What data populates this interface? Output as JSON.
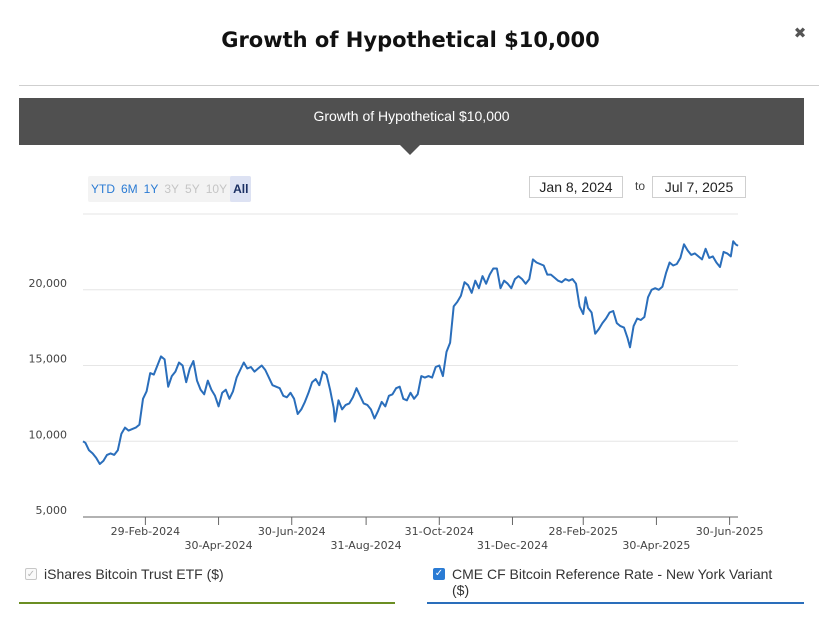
{
  "modal": {
    "title": "Growth of Hypothetical $10,000",
    "close_glyph": "✖"
  },
  "banner": {
    "title": "Growth of Hypothetical $10,000"
  },
  "range_selector": {
    "buttons": [
      {
        "label": "YTD",
        "state": "enabled"
      },
      {
        "label": "6M",
        "state": "enabled"
      },
      {
        "label": "1Y",
        "state": "enabled"
      },
      {
        "label": "3Y",
        "state": "disabled"
      },
      {
        "label": "5Y",
        "state": "disabled"
      },
      {
        "label": "10Y",
        "state": "disabled"
      },
      {
        "label": "All",
        "state": "selected"
      }
    ]
  },
  "date_range": {
    "from": "Jan 8, 2024",
    "separator": "to",
    "to": "Jul 7, 2025"
  },
  "legend": [
    {
      "label": "iShares Bitcoin Trust ETF ($)",
      "checked": false,
      "color": "#6b8e23"
    },
    {
      "label": "CME CF Bitcoin Reference Rate - New York Variant ($)",
      "checked": true,
      "color": "#2a6ebb"
    }
  ],
  "chart_data": {
    "type": "line",
    "y_ticks": [
      5000,
      10000,
      15000,
      20000
    ],
    "y_tick_labels": [
      "5,000",
      "10,000",
      "15,000",
      "20,000"
    ],
    "ylim": [
      5000,
      25000
    ],
    "x_ticks": [
      {
        "date": "2024-02-29",
        "label": "29-Feb-2024",
        "row": 1
      },
      {
        "date": "2024-04-30",
        "label": "30-Apr-2024",
        "row": 2
      },
      {
        "date": "2024-06-30",
        "label": "30-Jun-2024",
        "row": 1
      },
      {
        "date": "2024-08-31",
        "label": "31-Aug-2024",
        "row": 2
      },
      {
        "date": "2024-10-31",
        "label": "31-Oct-2024",
        "row": 1
      },
      {
        "date": "2024-12-31",
        "label": "31-Dec-2024",
        "row": 2
      },
      {
        "date": "2025-02-28",
        "label": "28-Feb-2025",
        "row": 1
      },
      {
        "date": "2025-04-30",
        "label": "30-Apr-2025",
        "row": 2
      },
      {
        "date": "2025-06-30",
        "label": "30-Jun-2025",
        "row": 1
      }
    ],
    "xlim": [
      "2024-01-08",
      "2025-07-07"
    ],
    "grid": true,
    "series": [
      {
        "name": "CME CF Bitcoin Reference Rate - New York Variant ($)",
        "color": "#2a6ebb",
        "points": [
          [
            "2024-01-08",
            10000
          ],
          [
            "2024-01-10",
            9900
          ],
          [
            "2024-01-13",
            9400
          ],
          [
            "2024-01-16",
            9200
          ],
          [
            "2024-01-19",
            8900
          ],
          [
            "2024-01-22",
            8500
          ],
          [
            "2024-01-25",
            8700
          ],
          [
            "2024-01-28",
            9100
          ],
          [
            "2024-01-31",
            9200
          ],
          [
            "2024-02-03",
            9100
          ],
          [
            "2024-02-06",
            9400
          ],
          [
            "2024-02-09",
            10500
          ],
          [
            "2024-02-12",
            10900
          ],
          [
            "2024-02-15",
            10700
          ],
          [
            "2024-02-18",
            10800
          ],
          [
            "2024-02-21",
            10900
          ],
          [
            "2024-02-24",
            11100
          ],
          [
            "2024-02-27",
            12800
          ],
          [
            "2024-03-01",
            13300
          ],
          [
            "2024-03-04",
            14500
          ],
          [
            "2024-03-07",
            14400
          ],
          [
            "2024-03-10",
            15000
          ],
          [
            "2024-03-13",
            15600
          ],
          [
            "2024-03-16",
            15400
          ],
          [
            "2024-03-19",
            13600
          ],
          [
            "2024-03-22",
            14300
          ],
          [
            "2024-03-25",
            14600
          ],
          [
            "2024-03-28",
            15200
          ],
          [
            "2024-03-31",
            15000
          ],
          [
            "2024-04-03",
            13900
          ],
          [
            "2024-04-06",
            14800
          ],
          [
            "2024-04-09",
            15300
          ],
          [
            "2024-04-12",
            14000
          ],
          [
            "2024-04-15",
            13400
          ],
          [
            "2024-04-18",
            13100
          ],
          [
            "2024-04-21",
            14000
          ],
          [
            "2024-04-24",
            13400
          ],
          [
            "2024-04-27",
            13000
          ],
          [
            "2024-04-30",
            12300
          ],
          [
            "2024-05-03",
            13200
          ],
          [
            "2024-05-06",
            13400
          ],
          [
            "2024-05-09",
            12800
          ],
          [
            "2024-05-12",
            13300
          ],
          [
            "2024-05-15",
            14200
          ],
          [
            "2024-05-18",
            14700
          ],
          [
            "2024-05-21",
            15200
          ],
          [
            "2024-05-24",
            14800
          ],
          [
            "2024-05-27",
            14900
          ],
          [
            "2024-05-30",
            14600
          ],
          [
            "2024-06-02",
            14800
          ],
          [
            "2024-06-05",
            15000
          ],
          [
            "2024-06-08",
            14700
          ],
          [
            "2024-06-11",
            14200
          ],
          [
            "2024-06-14",
            13700
          ],
          [
            "2024-06-17",
            13600
          ],
          [
            "2024-06-20",
            13500
          ],
          [
            "2024-06-23",
            13000
          ],
          [
            "2024-06-26",
            12900
          ],
          [
            "2024-06-29",
            13200
          ],
          [
            "2024-07-02",
            12800
          ],
          [
            "2024-07-05",
            11800
          ],
          [
            "2024-07-08",
            12100
          ],
          [
            "2024-07-11",
            12600
          ],
          [
            "2024-07-14",
            13200
          ],
          [
            "2024-07-17",
            13900
          ],
          [
            "2024-07-20",
            14100
          ],
          [
            "2024-07-23",
            13700
          ],
          [
            "2024-07-26",
            14600
          ],
          [
            "2024-07-29",
            14400
          ],
          [
            "2024-08-01",
            13400
          ],
          [
            "2024-08-04",
            12200
          ],
          [
            "2024-08-05",
            11300
          ],
          [
            "2024-08-08",
            12700
          ],
          [
            "2024-08-11",
            12100
          ],
          [
            "2024-08-14",
            12400
          ],
          [
            "2024-08-17",
            12500
          ],
          [
            "2024-08-20",
            12900
          ],
          [
            "2024-08-23",
            13500
          ],
          [
            "2024-08-26",
            13000
          ],
          [
            "2024-08-29",
            12500
          ],
          [
            "2024-09-01",
            12400
          ],
          [
            "2024-09-04",
            12100
          ],
          [
            "2024-09-07",
            11500
          ],
          [
            "2024-09-10",
            12000
          ],
          [
            "2024-09-13",
            12600
          ],
          [
            "2024-09-16",
            12300
          ],
          [
            "2024-09-19",
            13000
          ],
          [
            "2024-09-22",
            13100
          ],
          [
            "2024-09-25",
            13500
          ],
          [
            "2024-09-28",
            13600
          ],
          [
            "2024-10-01",
            12800
          ],
          [
            "2024-10-04",
            12700
          ],
          [
            "2024-10-07",
            13200
          ],
          [
            "2024-10-10",
            12800
          ],
          [
            "2024-10-13",
            13100
          ],
          [
            "2024-10-16",
            14300
          ],
          [
            "2024-10-19",
            14200
          ],
          [
            "2024-10-22",
            14300
          ],
          [
            "2024-10-25",
            14200
          ],
          [
            "2024-10-28",
            14900
          ],
          [
            "2024-10-31",
            15000
          ],
          [
            "2024-11-03",
            14300
          ],
          [
            "2024-11-06",
            15900
          ],
          [
            "2024-11-09",
            16500
          ],
          [
            "2024-11-12",
            18900
          ],
          [
            "2024-11-15",
            19200
          ],
          [
            "2024-11-18",
            19600
          ],
          [
            "2024-11-21",
            20500
          ],
          [
            "2024-11-24",
            20300
          ],
          [
            "2024-11-27",
            19800
          ],
          [
            "2024-11-30",
            20600
          ],
          [
            "2024-12-03",
            20100
          ],
          [
            "2024-12-06",
            20900
          ],
          [
            "2024-12-09",
            20400
          ],
          [
            "2024-12-12",
            21000
          ],
          [
            "2024-12-15",
            21400
          ],
          [
            "2024-12-18",
            21400
          ],
          [
            "2024-12-21",
            20100
          ],
          [
            "2024-12-24",
            20600
          ],
          [
            "2024-12-27",
            20400
          ],
          [
            "2024-12-30",
            20100
          ],
          [
            "2025-01-02",
            20700
          ],
          [
            "2025-01-05",
            20900
          ],
          [
            "2025-01-08",
            20700
          ],
          [
            "2025-01-11",
            20400
          ],
          [
            "2025-01-14",
            20700
          ],
          [
            "2025-01-17",
            22000
          ],
          [
            "2025-01-20",
            21800
          ],
          [
            "2025-01-23",
            21700
          ],
          [
            "2025-01-26",
            21600
          ],
          [
            "2025-01-29",
            21000
          ],
          [
            "2025-02-01",
            21000
          ],
          [
            "2025-02-04",
            20800
          ],
          [
            "2025-02-07",
            20600
          ],
          [
            "2025-02-10",
            20500
          ],
          [
            "2025-02-13",
            20700
          ],
          [
            "2025-02-16",
            20600
          ],
          [
            "2025-02-19",
            20700
          ],
          [
            "2025-02-22",
            20400
          ],
          [
            "2025-02-25",
            18900
          ],
          [
            "2025-02-28",
            18400
          ],
          [
            "2025-03-02",
            19500
          ],
          [
            "2025-03-04",
            18800
          ],
          [
            "2025-03-07",
            18500
          ],
          [
            "2025-03-10",
            17100
          ],
          [
            "2025-03-13",
            17400
          ],
          [
            "2025-03-16",
            17800
          ],
          [
            "2025-03-19",
            18100
          ],
          [
            "2025-03-22",
            18500
          ],
          [
            "2025-03-25",
            18600
          ],
          [
            "2025-03-28",
            17800
          ],
          [
            "2025-03-31",
            17600
          ],
          [
            "2025-04-03",
            17500
          ],
          [
            "2025-04-06",
            16800
          ],
          [
            "2025-04-08",
            16200
          ],
          [
            "2025-04-11",
            17600
          ],
          [
            "2025-04-14",
            18100
          ],
          [
            "2025-04-17",
            18000
          ],
          [
            "2025-04-20",
            18200
          ],
          [
            "2025-04-23",
            19500
          ],
          [
            "2025-04-26",
            20000
          ],
          [
            "2025-04-29",
            20100
          ],
          [
            "2025-05-02",
            20000
          ],
          [
            "2025-05-05",
            20200
          ],
          [
            "2025-05-08",
            21100
          ],
          [
            "2025-05-11",
            21800
          ],
          [
            "2025-05-14",
            21600
          ],
          [
            "2025-05-17",
            21700
          ],
          [
            "2025-05-20",
            22100
          ],
          [
            "2025-05-23",
            23000
          ],
          [
            "2025-05-26",
            22600
          ],
          [
            "2025-05-29",
            22300
          ],
          [
            "2025-06-01",
            22400
          ],
          [
            "2025-06-04",
            22200
          ],
          [
            "2025-06-07",
            22000
          ],
          [
            "2025-06-10",
            22700
          ],
          [
            "2025-06-13",
            22100
          ],
          [
            "2025-06-16",
            22200
          ],
          [
            "2025-06-19",
            21800
          ],
          [
            "2025-06-22",
            21500
          ],
          [
            "2025-06-25",
            22500
          ],
          [
            "2025-06-28",
            22400
          ],
          [
            "2025-07-01",
            22200
          ],
          [
            "2025-07-03",
            23200
          ],
          [
            "2025-07-05",
            23000
          ],
          [
            "2025-07-07",
            22900
          ]
        ]
      }
    ]
  }
}
